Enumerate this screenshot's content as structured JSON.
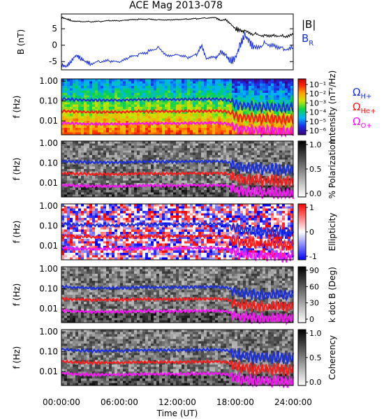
{
  "title": "ACE Mag 2013-078",
  "colors": {
    "b_total": "#000000",
    "b_r": "#1a2fe0",
    "omega_h": "#1a2fe0",
    "omega_he": "#ff1a1a",
    "omega_o": "#ff10ff"
  },
  "chart_data": [
    {
      "type": "line",
      "panel": "magnetic-field",
      "ylabel": "B (nT)",
      "yticks": [
        "5",
        "0",
        "-5"
      ],
      "ylim": [
        -7.5,
        9.5
      ],
      "legend": [
        {
          "name": "|B|",
          "color": "#000000"
        },
        {
          "name": "B",
          "sub": "R",
          "color": "#1a2fe0"
        }
      ],
      "series": [
        {
          "name": "|B|",
          "x": [
            0,
            0.5,
            1,
            2,
            3,
            4,
            5,
            6,
            7,
            8,
            9,
            10,
            11,
            12,
            13,
            14,
            15,
            16,
            16.5,
            17,
            17.5,
            18,
            18.5,
            19,
            20,
            21,
            22,
            23,
            24
          ],
          "y": [
            8.5,
            8.0,
            7.5,
            7.3,
            7.2,
            7.2,
            7.4,
            7.3,
            7.6,
            7.8,
            7.9,
            7.8,
            7.8,
            7.9,
            8.0,
            8.1,
            8.2,
            8.3,
            7.5,
            7.8,
            6.5,
            5.0,
            4.5,
            4.0,
            3.5,
            3.2,
            3.3,
            3.0,
            3.1
          ]
        },
        {
          "name": "BR",
          "x": [
            0,
            0.5,
            1,
            1.5,
            2,
            2.5,
            3,
            4,
            5,
            6,
            7,
            8,
            9,
            10,
            11,
            12,
            13,
            14,
            14.5,
            15,
            16,
            16.5,
            17,
            17.5,
            18,
            18.5,
            19,
            19.5,
            20,
            21,
            22,
            23,
            24
          ],
          "y": [
            -6.0,
            -6.5,
            -5.0,
            -3.0,
            -4.0,
            -5.0,
            -5.5,
            -5.0,
            -5.0,
            -5.5,
            -4.0,
            -3.0,
            -2.0,
            -0.5,
            -3.0,
            -2.5,
            -3.5,
            -3.0,
            0.0,
            -4.0,
            -4.0,
            -2.0,
            -3.0,
            -5.0,
            -4.0,
            0.0,
            3.0,
            1.0,
            -1.0,
            1.0,
            0.5,
            -0.5,
            -1.0
          ]
        }
      ]
    },
    {
      "type": "heatmap",
      "panel": "intensity",
      "ylabel": "f (Hz)",
      "yticks": [
        "1.00",
        "0.10",
        "0.01"
      ],
      "colorbar_label": "Intensity (nT²/Hz)",
      "colorbar_ticks": [
        "10⁻¹",
        "10⁻²",
        "10⁻³",
        "10⁻⁴",
        "10⁻⁵",
        "10⁻⁶"
      ],
      "colorbar": "rainbow"
    },
    {
      "type": "heatmap",
      "panel": "polarization",
      "ylabel": "f (Hz)",
      "yticks": [
        "1.00",
        "0.10",
        "0.01"
      ],
      "colorbar_label": "% Polarization",
      "colorbar_ticks": [
        "1.0",
        "0.5",
        "0.0"
      ],
      "colorbar": "gray"
    },
    {
      "type": "heatmap",
      "panel": "ellipticity",
      "ylabel": "f (Hz)",
      "yticks": [
        "1.00",
        "0.10",
        "0.01"
      ],
      "colorbar_label": "Ellipticity",
      "colorbar_ticks": [
        "1",
        "0",
        "-1"
      ],
      "colorbar": "blue-white-red"
    },
    {
      "type": "heatmap",
      "panel": "kdotb",
      "ylabel": "f (Hz)",
      "yticks": [
        "1.00",
        "0.10",
        "0.01"
      ],
      "colorbar_label": "k dot B (Deg)",
      "colorbar_ticks": [
        "90",
        "60",
        "30",
        "0"
      ],
      "colorbar": "gray"
    },
    {
      "type": "heatmap",
      "panel": "coherency",
      "ylabel": "f (Hz)",
      "yticks": [
        "1.00",
        "0.10",
        "0.01"
      ],
      "colorbar_label": "Coherency",
      "colorbar_ticks": [
        "1.0",
        "0.5",
        "0.0"
      ],
      "colorbar": "gray"
    }
  ],
  "gyrofrequencies": {
    "legend": [
      {
        "name": "Ω",
        "sub": "H+",
        "color": "#1a2fe0"
      },
      {
        "name": "Ω",
        "sub": "He+",
        "color": "#ff1a1a"
      },
      {
        "name": "Ω",
        "sub": "O+",
        "color": "#ff10ff"
      }
    ],
    "x": [
      0,
      1,
      2,
      3,
      4,
      5,
      6,
      7,
      8,
      9,
      10,
      11,
      12,
      13,
      14,
      15,
      16,
      17,
      17.5,
      18,
      18.5,
      19,
      20,
      21,
      22,
      23,
      24
    ],
    "omega_h": [
      0.13,
      0.12,
      0.115,
      0.11,
      0.11,
      0.11,
      0.11,
      0.115,
      0.118,
      0.12,
      0.12,
      0.12,
      0.12,
      0.122,
      0.124,
      0.125,
      0.126,
      0.118,
      0.1,
      0.075,
      0.065,
      0.06,
      0.055,
      0.05,
      0.05,
      0.047,
      0.048
    ],
    "omega_he": [
      0.032,
      0.03,
      0.029,
      0.028,
      0.028,
      0.028,
      0.028,
      0.029,
      0.03,
      0.03,
      0.03,
      0.03,
      0.03,
      0.031,
      0.031,
      0.031,
      0.032,
      0.03,
      0.025,
      0.019,
      0.016,
      0.015,
      0.014,
      0.013,
      0.013,
      0.012,
      0.012
    ],
    "omega_o": [
      0.0082,
      0.0076,
      0.0072,
      0.007,
      0.007,
      0.007,
      0.007,
      0.0072,
      0.0074,
      0.0075,
      0.0075,
      0.0075,
      0.0075,
      0.0077,
      0.0078,
      0.0078,
      0.0079,
      0.0074,
      0.0062,
      0.0047,
      0.004,
      0.0038,
      0.0035,
      0.0033,
      0.0032,
      0.003,
      0.003
    ]
  },
  "xaxis": {
    "ticks": [
      "00:00:00",
      "06:00:00",
      "12:00:00",
      "18:00:00",
      "24:00:00"
    ],
    "tick_hours": [
      0,
      6,
      12,
      18,
      24
    ],
    "label": "Time (UT)",
    "range": [
      0,
      24
    ]
  },
  "freq_range": [
    0.002,
    1.3
  ]
}
